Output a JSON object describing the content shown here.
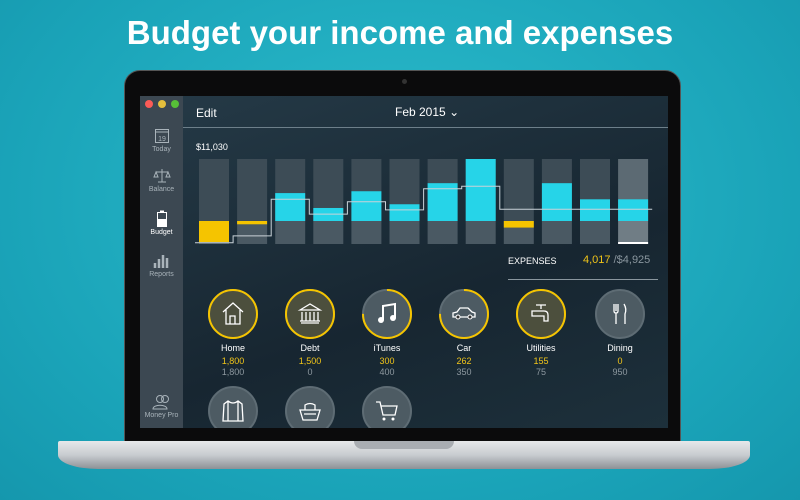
{
  "headline": "Budget your income and expenses",
  "colors": {
    "accent": "#26d4e8",
    "over": "#f5c400",
    "background": "#1eaabf"
  },
  "window": {
    "traffic_lights": [
      "#fc5b57",
      "#e5bf3c",
      "#57c038"
    ]
  },
  "sidebar": {
    "items": [
      {
        "label": "Today",
        "icon": "calendar-icon",
        "day": "19",
        "active": false
      },
      {
        "label": "Balance",
        "icon": "scales-icon",
        "active": false
      },
      {
        "label": "Budget",
        "icon": "battery-icon",
        "active": true
      },
      {
        "label": "Reports",
        "icon": "bar-chart-icon",
        "active": false
      },
      {
        "label": "Money Pro",
        "icon": "users-icon",
        "active": false
      }
    ]
  },
  "toolbar": {
    "edit_label": "Edit",
    "month_label": "Feb 2015"
  },
  "chart_data": {
    "type": "bar",
    "max_label": "$11,030",
    "note_units": "fraction of max",
    "income": [
      0,
      0,
      0.45,
      0.21,
      0.48,
      0.27,
      0.61,
      1.0,
      0,
      0.61,
      0.35,
      0.35
    ],
    "expense": [
      0.32,
      0.05,
      0,
      0,
      0,
      0,
      0,
      0,
      0.1,
      0,
      0,
      0
    ],
    "balance_line": [
      -0.35,
      -0.24,
      0.35,
      0.11,
      0.31,
      0.18,
      0.52,
      0.56,
      0.19,
      0.19,
      0.19,
      0.19
    ],
    "selected_index": 11
  },
  "expenses": {
    "label": "EXPENSES",
    "spent": "4,017",
    "budget": "/$4,925"
  },
  "categories": [
    {
      "name": "Home",
      "spent": "1,800",
      "budget": "1,800",
      "icon": "house-icon",
      "progress": 1,
      "over": true
    },
    {
      "name": "Debt",
      "spent": "1,500",
      "budget": "0",
      "icon": "bank-icon",
      "progress": 1,
      "over": true
    },
    {
      "name": "iTunes",
      "spent": "300",
      "budget": "400",
      "icon": "music-note-icon",
      "progress": 0.75,
      "over": false
    },
    {
      "name": "Car",
      "spent": "262",
      "budget": "350",
      "icon": "car-icon",
      "progress": 0.75,
      "over": false
    },
    {
      "name": "Utilities",
      "spent": "155",
      "budget": "75",
      "icon": "faucet-icon",
      "progress": 1,
      "over": true
    },
    {
      "name": "Dining",
      "spent": "0",
      "budget": "950",
      "icon": "fork-knife-icon",
      "progress": 0,
      "over": false
    },
    {
      "icon": "shirt-icon",
      "progress": 0
    },
    {
      "icon": "grocery-basket-icon",
      "progress": 0
    },
    {
      "icon": "shopping-cart-icon",
      "progress": 0
    }
  ]
}
